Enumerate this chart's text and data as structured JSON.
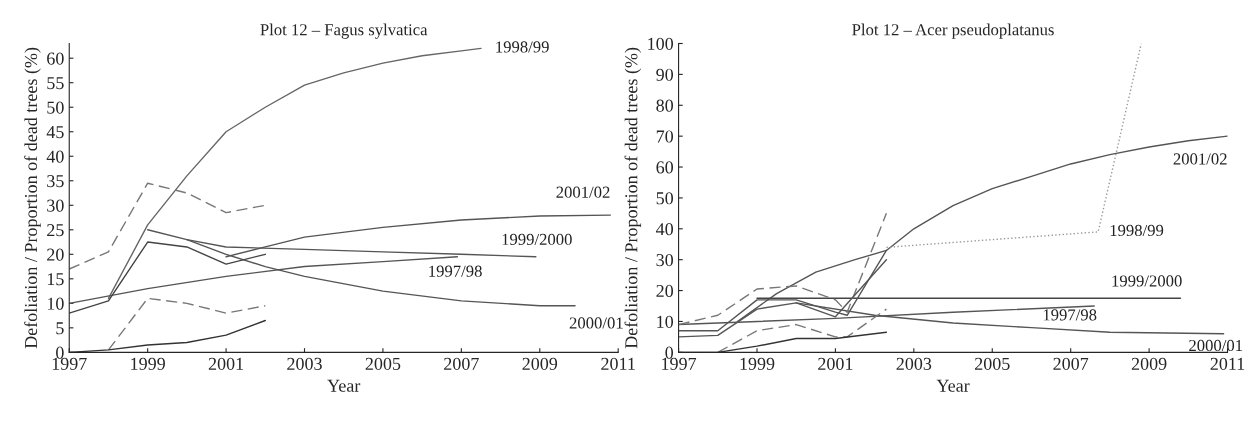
{
  "chart_data": [
    {
      "type": "line",
      "title": "Plot 12 – Fagus sylvatica",
      "xlabel": "Year",
      "ylabel": "Defoliation / Proportion of dead trees (%)",
      "xlim": [
        1997,
        2011
      ],
      "xticks": [
        1997,
        1999,
        2001,
        2003,
        2005,
        2007,
        2009,
        2011
      ],
      "ylim": [
        0,
        63
      ],
      "yticks": [
        0,
        5,
        10,
        15,
        20,
        25,
        30,
        35,
        40,
        45,
        50,
        55,
        60
      ],
      "grid": false,
      "legend": false,
      "series": [
        {
          "name": "1998/99",
          "color": "#666666",
          "line_style": "solid",
          "x": [
            1998,
            1999,
            2000,
            2001,
            2002,
            2003,
            2004,
            2005,
            2006,
            2007,
            2007.5
          ],
          "values": [
            11,
            26,
            36,
            45,
            50,
            54.5,
            57,
            59,
            60.5,
            61.5,
            62
          ]
        },
        {
          "name": "2001/02",
          "color": "#555555",
          "line_style": "solid",
          "x": [
            2001,
            2002,
            2003,
            2005,
            2007,
            2009,
            2010.8
          ],
          "values": [
            19.5,
            21.5,
            23.5,
            25.5,
            27,
            27.8,
            28
          ]
        },
        {
          "name": "1999/2000",
          "color": "#555555",
          "line_style": "solid",
          "x": [
            1999,
            2000,
            2001,
            2003,
            2005,
            2007,
            2008.9
          ],
          "values": [
            25,
            23,
            21.5,
            21,
            20.5,
            20,
            19.5
          ]
        },
        {
          "name": "1997/98",
          "color": "#555555",
          "line_style": "solid",
          "x": [
            1997,
            1999,
            2001,
            2003,
            2005,
            2006.9
          ],
          "values": [
            10,
            13,
            15.5,
            17.5,
            18.5,
            19.5
          ]
        },
        {
          "name": "2000/01",
          "color": "#555555",
          "line_style": "solid",
          "x": [
            2000,
            2001,
            2002,
            2003,
            2005,
            2007,
            2009,
            2009.9
          ],
          "values": [
            23,
            20,
            17.5,
            15.5,
            12.5,
            10.5,
            9.5,
            9.5
          ]
        },
        {
          "color": "#444444",
          "line_style": "solid",
          "x": [
            1997,
            1998,
            1999,
            2000,
            2001,
            2002
          ],
          "values": [
            8,
            10.5,
            22.5,
            21.5,
            18,
            20
          ]
        },
        {
          "color": "#777777",
          "line_style": "dashed",
          "x": [
            1997,
            1998,
            1999,
            2000,
            2001,
            2002
          ],
          "values": [
            17,
            20.5,
            34.5,
            32.5,
            28.5,
            30
          ]
        },
        {
          "color": "#777777",
          "line_style": "dashed",
          "x": [
            1998,
            1999,
            2000,
            2001,
            2002
          ],
          "values": [
            0.5,
            11,
            10,
            8,
            9.5
          ]
        },
        {
          "color": "#333333",
          "line_style": "solid",
          "x": [
            1997,
            1998,
            1999,
            2000,
            2001,
            2002
          ],
          "values": [
            0,
            0.5,
            1.5,
            2,
            3.5,
            6.5
          ]
        }
      ]
    },
    {
      "type": "line",
      "title": "Plot 12 – Acer pseudoplatanus",
      "xlabel": "Year",
      "ylabel": "Defoliation / Proportion of dead trees (%)",
      "xlim": [
        1997,
        2011
      ],
      "xticks": [
        1997,
        1999,
        2001,
        2003,
        2005,
        2007,
        2009,
        2011
      ],
      "ylim": [
        0,
        100
      ],
      "yticks": [
        0,
        10,
        20,
        30,
        40,
        50,
        60,
        70,
        80,
        90,
        100
      ],
      "grid": false,
      "legend": false,
      "series": [
        {
          "name": "2001/02",
          "color": "#555555",
          "line_style": "solid",
          "x": [
            1998.5,
            1999.5,
            2000.5,
            2001.5,
            2002.3,
            2003,
            2004,
            2005,
            2006,
            2007,
            2008,
            2009,
            2010,
            2011
          ],
          "values": [
            10,
            19,
            26,
            30,
            33,
            40,
            47.5,
            53,
            57,
            61,
            64,
            66.5,
            68.5,
            70
          ]
        },
        {
          "name": "1998/99",
          "color": "#999999",
          "line_style": "dotted",
          "x": [
            2002.3,
            2007.7,
            2008.8
          ],
          "values": [
            34,
            39,
            100
          ]
        },
        {
          "name": "1999/2000",
          "color": "#444444",
          "line_style": "solid",
          "x": [
            1999,
            2009.8
          ],
          "values": [
            17.5,
            17.5
          ]
        },
        {
          "name": "1997/98",
          "color": "#555555",
          "line_style": "solid",
          "x": [
            1997,
            2001,
            2004,
            2007.6
          ],
          "values": [
            9,
            11,
            13,
            15
          ]
        },
        {
          "name": "2000/01",
          "color": "#555555",
          "line_style": "solid",
          "x": [
            2000,
            2002,
            2004,
            2006,
            2008,
            2010.9
          ],
          "values": [
            16,
            12,
            9.5,
            8,
            6.5,
            6
          ]
        },
        {
          "color": "#777777",
          "line_style": "dashed",
          "x": [
            1997,
            1998,
            1999,
            2000,
            2001,
            2001.3,
            2002.3
          ],
          "values": [
            9,
            12,
            20.5,
            21.5,
            17,
            13,
            45
          ]
        },
        {
          "color": "#555555",
          "line_style": "solid",
          "x": [
            1997,
            1998,
            1999,
            2000,
            2001,
            2002.3
          ],
          "values": [
            5,
            5.5,
            14,
            16,
            11.5,
            30
          ]
        },
        {
          "color": "#555555",
          "line_style": "solid",
          "x": [
            1997,
            1998,
            1999,
            2000,
            2001,
            2001.3,
            2002.3
          ],
          "values": [
            7,
            7,
            17,
            17,
            13,
            12,
            33
          ]
        },
        {
          "color": "#777777",
          "line_style": "dashed",
          "x": [
            1998,
            1999,
            2000,
            2001,
            2001.3,
            2002.3
          ],
          "values": [
            0,
            7,
            9,
            5,
            5,
            14
          ]
        },
        {
          "color": "#333333",
          "line_style": "solid",
          "x": [
            1997,
            1998,
            1999,
            2000,
            2001,
            2002.3
          ],
          "values": [
            0,
            0,
            2,
            4.5,
            4.5,
            6.5
          ]
        }
      ]
    }
  ]
}
